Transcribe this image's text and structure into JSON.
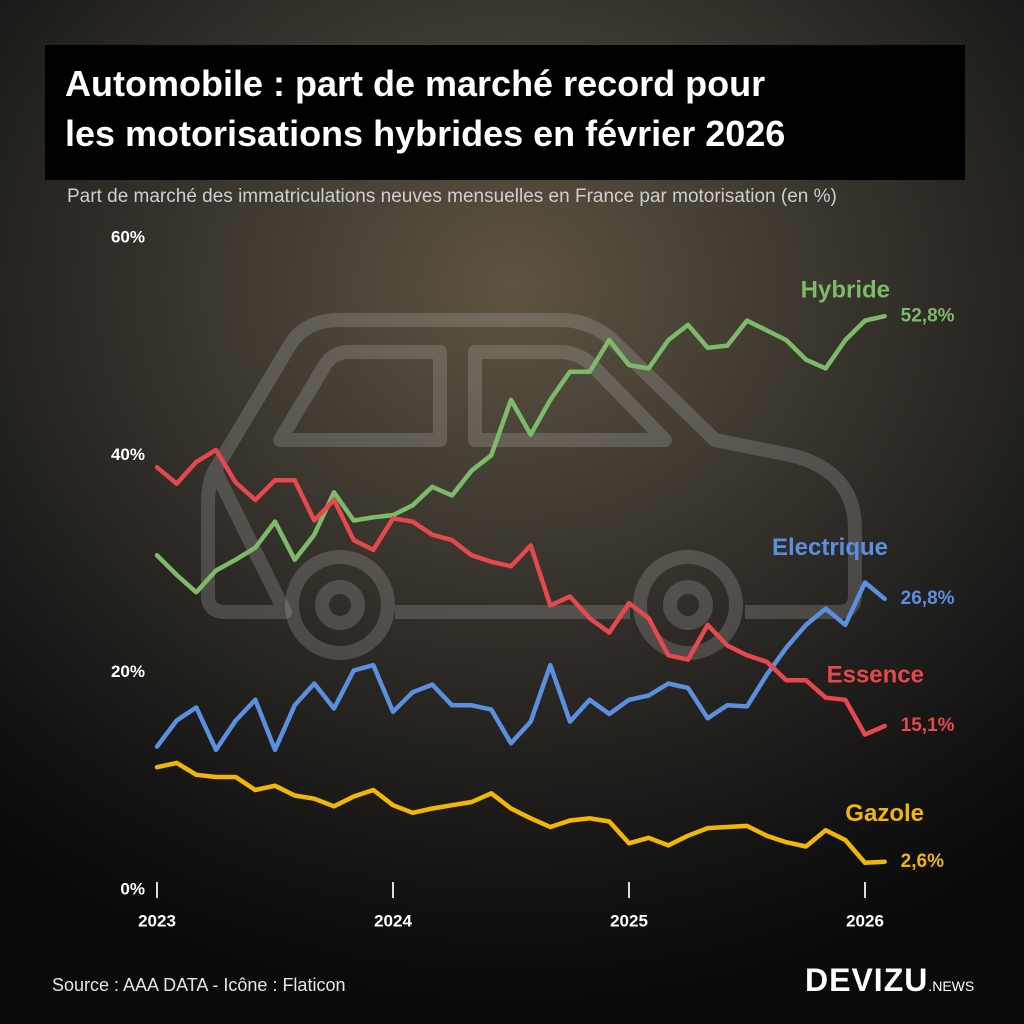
{
  "chart_data": {
    "type": "line",
    "title": "Automobile : part de marché record pour les motorisations hybrides en février 2026",
    "subtitle": "Part de marché des immatriculations neuves mensuelles en France par motorisation (en %)",
    "categories": [
      "2023",
      null,
      null,
      null,
      null,
      null,
      null,
      null,
      null,
      null,
      null,
      null,
      "2024",
      null,
      null,
      null,
      null,
      null,
      null,
      null,
      null,
      null,
      null,
      null,
      "2025",
      null,
      null,
      null,
      null,
      null,
      null,
      null,
      null,
      null,
      null,
      null,
      "2026",
      null
    ],
    "ylim": [
      0,
      60
    ],
    "yticks": [
      {
        "value": 0,
        "label": "0%"
      },
      {
        "value": 20,
        "label": "20%"
      },
      {
        "value": 40,
        "label": "40%"
      },
      {
        "value": 60,
        "label": "60%"
      }
    ],
    "grid": false,
    "series": [
      {
        "name": "Hybride",
        "color": "#7dbb6a",
        "values": [
          30.8,
          29.0,
          27.4,
          29.4,
          30.4,
          31.5,
          33.9,
          30.4,
          32.7,
          36.6,
          34.0,
          34.3,
          34.5,
          35.4,
          37.1,
          36.3,
          38.6,
          40.0,
          45.1,
          41.9,
          45.1,
          47.7,
          47.7,
          50.6,
          48.3,
          48.0,
          50.6,
          52.0,
          49.9,
          50.1,
          52.4,
          51.5,
          50.6,
          48.8,
          48.0,
          50.6,
          52.4,
          52.8
        ],
        "value_labels": [
          null,
          null,
          null,
          null,
          null,
          null,
          null,
          null,
          null,
          null,
          null,
          null,
          null,
          null,
          null,
          null,
          null,
          null,
          null,
          null,
          null,
          null,
          null,
          null,
          null,
          null,
          null,
          null,
          null,
          null,
          null,
          null,
          null,
          null,
          null,
          null,
          null,
          "52,8%"
        ]
      },
      {
        "name": "Electrique",
        "color": "#5b8fe0",
        "values": [
          13.2,
          15.6,
          16.8,
          12.9,
          15.6,
          17.5,
          12.9,
          17.0,
          19.0,
          16.7,
          20.2,
          20.7,
          16.4,
          18.2,
          18.9,
          17.0,
          17.0,
          16.6,
          13.5,
          15.5,
          20.7,
          15.5,
          17.5,
          16.2,
          17.5,
          17.9,
          19.0,
          18.6,
          15.8,
          17.0,
          16.9,
          19.8,
          22.3,
          24.4,
          25.9,
          24.4,
          28.3,
          26.8
        ],
        "value_labels": [
          null,
          null,
          null,
          null,
          null,
          null,
          null,
          null,
          null,
          null,
          null,
          null,
          null,
          null,
          null,
          null,
          null,
          null,
          null,
          null,
          null,
          null,
          null,
          null,
          null,
          null,
          null,
          null,
          null,
          null,
          null,
          null,
          null,
          null,
          null,
          null,
          null,
          "26,8%"
        ]
      },
      {
        "name": "Essence",
        "color": "#e5484d",
        "values": [
          38.9,
          37.4,
          39.4,
          40.5,
          37.5,
          35.9,
          37.7,
          37.7,
          34.0,
          35.9,
          32.2,
          31.3,
          34.2,
          33.9,
          32.7,
          32.2,
          30.8,
          30.2,
          29.8,
          31.7,
          26.2,
          27.0,
          25.0,
          23.7,
          26.4,
          25.0,
          21.6,
          21.2,
          24.4,
          22.5,
          21.6,
          21.0,
          19.3,
          19.3,
          17.7,
          17.5,
          14.3,
          15.1
        ],
        "value_labels": [
          null,
          null,
          null,
          null,
          null,
          null,
          null,
          null,
          null,
          null,
          null,
          null,
          null,
          null,
          null,
          null,
          null,
          null,
          null,
          null,
          null,
          null,
          null,
          null,
          null,
          null,
          null,
          null,
          null,
          null,
          null,
          null,
          null,
          null,
          null,
          null,
          null,
          "15,1%"
        ]
      },
      {
        "name": "Gazole",
        "color": "#f2b705",
        "values": [
          11.3,
          11.7,
          10.6,
          10.4,
          10.4,
          9.2,
          9.6,
          8.7,
          8.4,
          7.7,
          8.6,
          9.2,
          7.8,
          7.1,
          7.5,
          7.8,
          8.1,
          8.9,
          7.5,
          6.6,
          5.8,
          6.4,
          6.6,
          6.3,
          4.3,
          4.8,
          4.1,
          5.0,
          5.7,
          5.8,
          5.9,
          5.0,
          4.4,
          4.0,
          5.5,
          4.6,
          2.5,
          2.6
        ],
        "value_labels": [
          null,
          null,
          null,
          null,
          null,
          null,
          null,
          null,
          null,
          null,
          null,
          null,
          null,
          null,
          null,
          null,
          null,
          null,
          null,
          null,
          null,
          null,
          null,
          null,
          null,
          null,
          null,
          null,
          null,
          null,
          null,
          null,
          null,
          null,
          null,
          null,
          null,
          "2,6%"
        ]
      }
    ]
  },
  "footer": {
    "source": "Source : AAA DATA - Icône : Flaticon",
    "logo": "DEVIZU",
    "logo_suffix": ".NEWS"
  }
}
